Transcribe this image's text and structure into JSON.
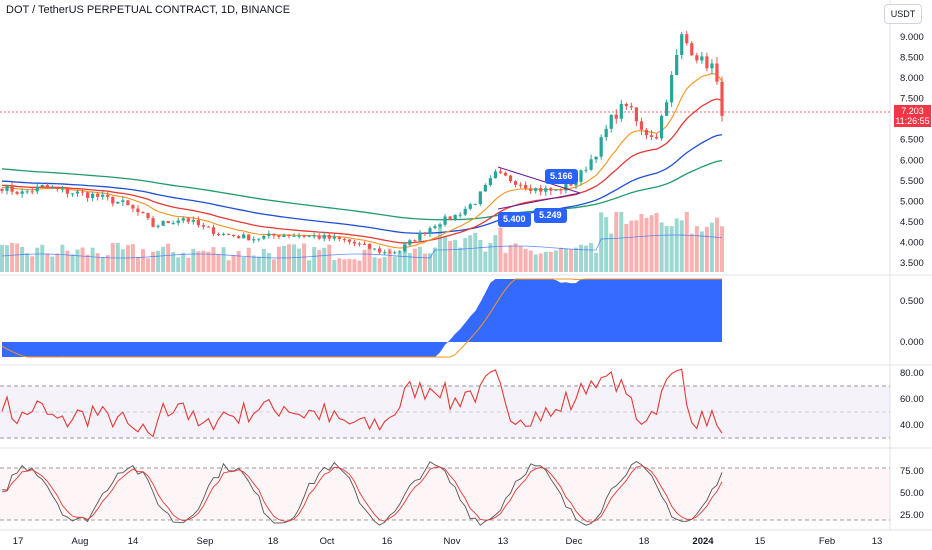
{
  "header": {
    "title": "DOT / TetherUS PERPETUAL CONTRACT, 1D, BINANCE",
    "currency": "USDT"
  },
  "last_price": {
    "value": "7.203",
    "countdown": "11:26:55"
  },
  "callouts": [
    "5.166",
    "5.400",
    "5.249"
  ],
  "x_axis": {
    "labels": [
      "17",
      "Aug",
      "14",
      "Sep",
      "18",
      "Oct",
      "16",
      "Nov",
      "13",
      "Dec",
      "18",
      "2024",
      "15",
      "Feb",
      "13"
    ]
  },
  "price_axis": {
    "labels": [
      "9.000",
      "8.500",
      "8.000",
      "7.500",
      "7.000",
      "6.500",
      "6.000",
      "5.500",
      "5.000",
      "4.500",
      "4.000",
      "3.500"
    ]
  },
  "macd_axis": {
    "labels": [
      "0.500",
      "0.000"
    ]
  },
  "rsi_axis": {
    "labels": [
      "80.00",
      "60.00",
      "40.00"
    ]
  },
  "stoch_axis": {
    "labels": [
      "75.00",
      "50.00",
      "25.00"
    ]
  },
  "colors": {
    "up": "#26a69a",
    "down": "#ef5350",
    "ema_fast": "#f7931a",
    "ema_mid": "#e53935",
    "ema_slow": "#1e4fd8",
    "ema_long": "#1f9c6b",
    "macd_fill": "#2962ff",
    "rsi": "#e53935",
    "stoch_k": "#555555",
    "stoch_d": "#e53935"
  },
  "chart_data": [
    {
      "type": "candlestick",
      "name": "price",
      "x": [
        "Jul 2023",
        "Aug 2023",
        "Sep 2023",
        "Oct 2023",
        "Nov 2023",
        "Dec 2023",
        "Jan 2024"
      ],
      "close_anchors": [
        {
          "x": "Jul 10",
          "y": 5.35
        },
        {
          "x": "Jul 20",
          "y": 5.3
        },
        {
          "x": "Aug 5",
          "y": 5.0
        },
        {
          "x": "Aug 15",
          "y": 4.45
        },
        {
          "x": "Sep 1",
          "y": 4.2
        },
        {
          "x": "Sep 15",
          "y": 4.1
        },
        {
          "x": "Oct 1",
          "y": 4.05
        },
        {
          "x": "Oct 15",
          "y": 3.8
        },
        {
          "x": "Oct 20",
          "y": 4.05
        },
        {
          "x": "Oct 30",
          "y": 4.6
        },
        {
          "x": "Nov 10",
          "y": 5.6
        },
        {
          "x": "Nov 20",
          "y": 5.3
        },
        {
          "x": "Dec 1",
          "y": 5.6
        },
        {
          "x": "Dec 10",
          "y": 7.1
        },
        {
          "x": "Dec 20",
          "y": 6.6
        },
        {
          "x": "Dec 26",
          "y": 8.9
        },
        {
          "x": "Jan 1",
          "y": 8.4
        },
        {
          "x": "Jan 5",
          "y": 7.2
        }
      ],
      "ylim": [
        3.3,
        9.6
      ],
      "overlays": [
        "EMA fast",
        "EMA mid",
        "EMA slow",
        "EMA long",
        "volume"
      ]
    },
    {
      "type": "area",
      "name": "MACD",
      "ylim": [
        -0.1,
        0.75
      ]
    },
    {
      "type": "line",
      "name": "RSI",
      "ylim": [
        25,
        88
      ],
      "bands": [
        70,
        50,
        30
      ]
    },
    {
      "type": "line",
      "name": "Stochastic",
      "ylim": [
        15,
        95
      ],
      "bands": [
        80,
        20
      ]
    }
  ]
}
